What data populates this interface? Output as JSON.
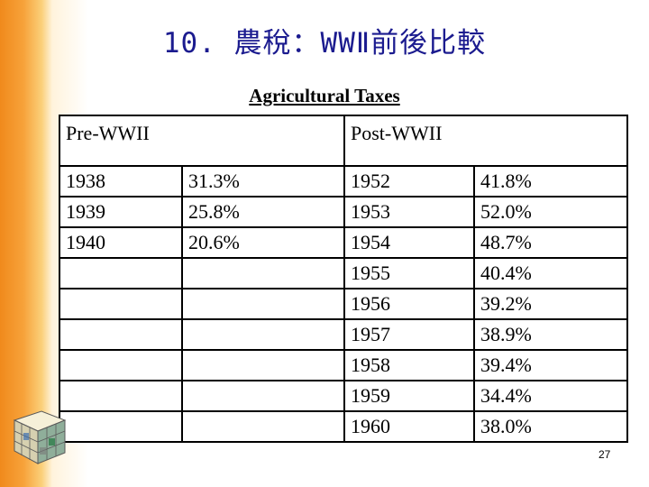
{
  "slide": {
    "title": "10. 農稅：WWⅡ前後比較",
    "caption": "Agricultural Taxes",
    "page_number": "27"
  },
  "table": {
    "headers": {
      "pre": "Pre-WWII",
      "post": "Post-WWII"
    },
    "rows": [
      {
        "pre_year": "1938",
        "pre_rate": "31.3%",
        "post_year": "1952",
        "post_rate": "41.8%"
      },
      {
        "pre_year": "1939",
        "pre_rate": "25.8%",
        "post_year": "1953",
        "post_rate": "52.0%"
      },
      {
        "pre_year": "1940",
        "pre_rate": "20.6%",
        "post_year": "1954",
        "post_rate": "48.7%"
      },
      {
        "pre_year": "",
        "pre_rate": "",
        "post_year": "1955",
        "post_rate": "40.4%"
      },
      {
        "pre_year": "",
        "pre_rate": "",
        "post_year": "1956",
        "post_rate": "39.2%"
      },
      {
        "pre_year": "",
        "pre_rate": "",
        "post_year": "1957",
        "post_rate": "38.9%"
      },
      {
        "pre_year": "",
        "pre_rate": "",
        "post_year": "1958",
        "post_rate": "39.4%"
      },
      {
        "pre_year": "",
        "pre_rate": "",
        "post_year": "1959",
        "post_rate": "34.4%"
      },
      {
        "pre_year": "",
        "pre_rate": "",
        "post_year": "1960",
        "post_rate": "38.0%"
      }
    ]
  },
  "theme": {
    "accent": "#f08a1c",
    "title_color": "#1b1b8f"
  }
}
